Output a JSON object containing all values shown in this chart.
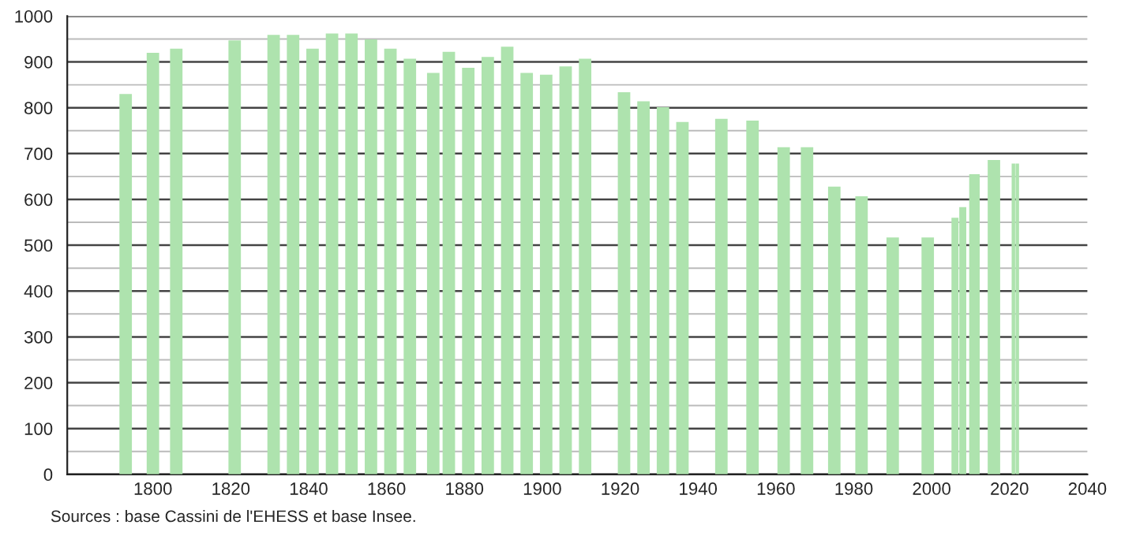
{
  "chart_data": {
    "type": "bar",
    "color": "#aee3ae",
    "x": [
      1793,
      1800,
      1806,
      1821,
      1831,
      1836,
      1841,
      1846,
      1851,
      1856,
      1861,
      1866,
      1872,
      1876,
      1881,
      1886,
      1891,
      1896,
      1901,
      1906,
      1911,
      1921,
      1926,
      1931,
      1936,
      1946,
      1954,
      1962,
      1968,
      1975,
      1982,
      1990,
      1999,
      2006,
      2008,
      2011,
      2016,
      2021,
      2022
    ],
    "values": [
      830,
      920,
      929,
      947,
      959,
      959,
      929,
      962,
      962,
      949,
      929,
      907,
      876,
      922,
      887,
      911,
      933,
      876,
      872,
      890,
      907,
      834,
      814,
      801,
      769,
      776,
      772,
      714,
      714,
      628,
      607,
      517,
      517,
      560,
      583,
      655,
      686,
      678,
      678
    ],
    "xlim": [
      1778,
      2040
    ],
    "xticks": [
      1800,
      1820,
      1840,
      1860,
      1880,
      1900,
      1920,
      1940,
      1960,
      1980,
      2000,
      2020,
      2040
    ],
    "ylim": [
      0,
      1000
    ],
    "yticks": [
      0,
      {
        "value": 50,
        "label": null
      },
      100,
      {
        "value": 150,
        "label": null
      },
      200,
      {
        "value": 250,
        "label": null
      },
      300,
      {
        "value": 350,
        "label": null
      },
      400,
      {
        "value": 450,
        "label": null
      },
      500,
      {
        "value": 550,
        "label": null
      },
      600,
      {
        "value": 650,
        "label": null
      },
      700,
      {
        "value": 750,
        "label": null
      },
      800,
      {
        "value": 850,
        "label": null
      },
      900,
      {
        "value": 950,
        "label": null
      },
      1000
    ],
    "grid": "y",
    "annotations": [
      "Sources : base Cassini de l'EHESS et base Insee."
    ]
  }
}
